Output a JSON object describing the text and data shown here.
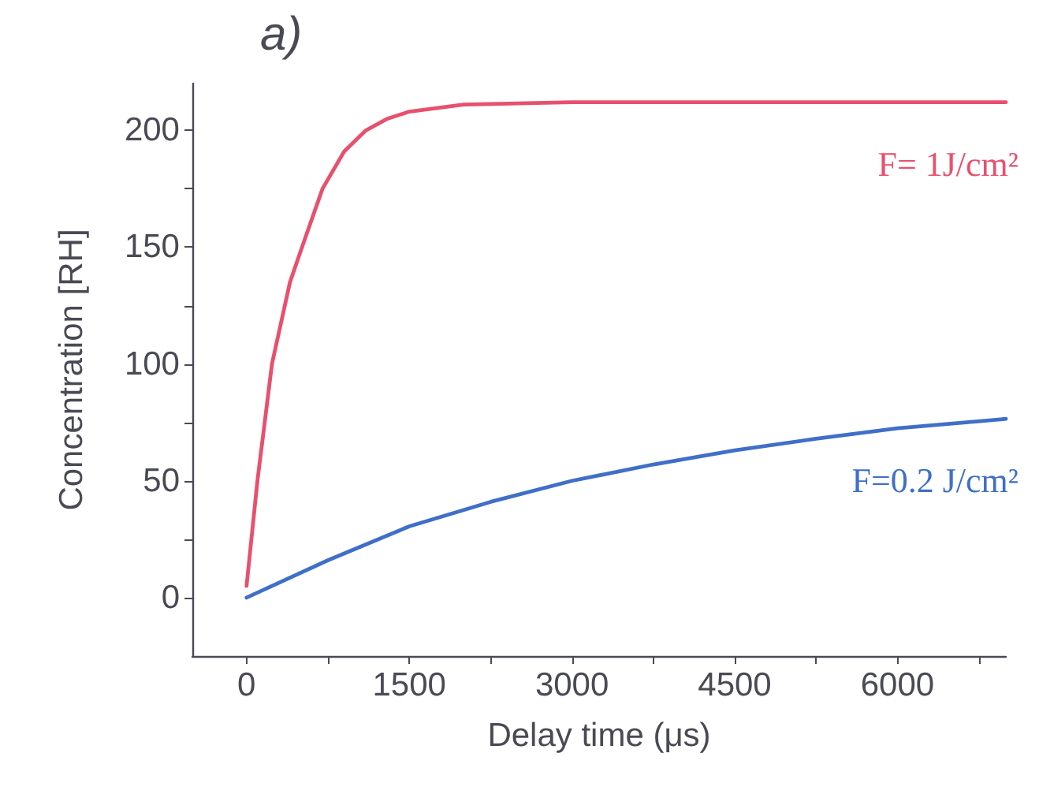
{
  "chart_data": {
    "type": "line",
    "title": "a)",
    "xlabel": "Delay time (μs)",
    "ylabel": "Concentration [RH]",
    "xlim": [
      -500,
      7000
    ],
    "ylim": [
      -25,
      220
    ],
    "xticks": [
      0,
      {
        "value": 750,
        "label": null
      },
      1500,
      {
        "value": 2250,
        "label": null
      },
      3000,
      {
        "value": 3750,
        "label": null
      },
      4500,
      {
        "value": 5250,
        "label": null
      },
      6000,
      {
        "value": 6750,
        "label": null
      }
    ],
    "yticks": [
      0,
      {
        "value": 25,
        "label": null
      },
      50,
      {
        "value": 75,
        "label": null
      },
      100,
      {
        "value": 125,
        "label": null
      },
      150,
      {
        "value": 175,
        "label": null
      },
      200
    ],
    "grid": false,
    "legend": false,
    "marker": "none",
    "line_style": "solid",
    "series": [
      {
        "name": "F= 1J/cm²",
        "color": "#e8506e",
        "x": [
          0,
          100,
          234,
          400,
          511,
          700,
          900,
          1100,
          1300,
          1500,
          2000,
          3000,
          5000,
          7000
        ],
        "values": [
          5,
          50,
          100,
          135,
          150,
          175,
          191,
          200,
          205,
          208,
          211,
          212,
          212,
          212
        ]
      },
      {
        "name": "F=0.2 J/cm²",
        "color": "#3f6fc8",
        "x": [
          0,
          750,
          1500,
          2250,
          3000,
          3750,
          4500,
          5250,
          6000,
          7000
        ],
        "values": [
          0,
          16,
          30.5,
          41,
          50,
          57,
          63,
          68,
          72.5,
          76.5
        ]
      }
    ]
  }
}
